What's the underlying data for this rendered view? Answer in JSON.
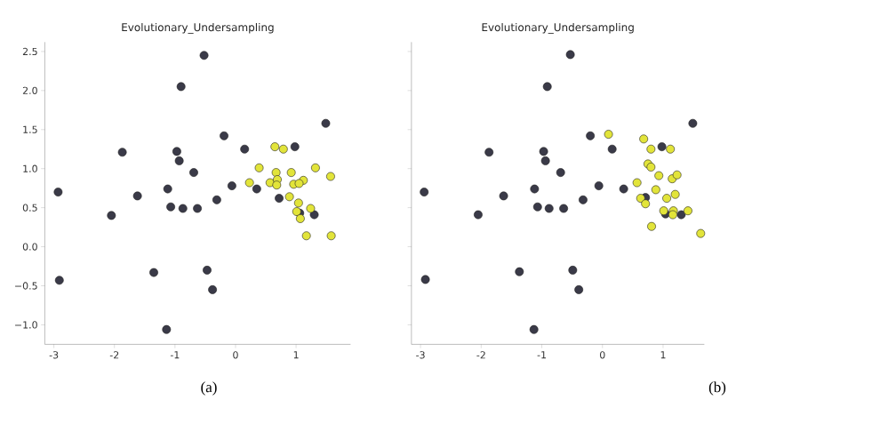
{
  "chart_data": [
    {
      "type": "scatter",
      "title": "Evolutionary_Undersampling",
      "annotations": [
        "(a)"
      ],
      "xlim": [
        -3.15,
        1.9
      ],
      "ylim": [
        -1.25,
        2.62
      ],
      "xticks": [
        -3,
        -2,
        -1,
        0,
        1
      ],
      "yticks": [
        {
          "value": -1,
          "label": "−1.0"
        },
        {
          "value": -0.5,
          "label": "−0.5"
        },
        {
          "value": 0,
          "label": "0.0"
        },
        {
          "value": 0.5,
          "label": "0.5"
        },
        {
          "value": 1,
          "label": "1.0"
        },
        {
          "value": 1.5,
          "label": "1.5"
        },
        {
          "value": 2,
          "label": "2.0"
        },
        {
          "value": 2.5,
          "label": "2.5"
        }
      ],
      "series": [
        {
          "color": "#3a3a48",
          "x": [
            -0.52,
            -0.9,
            1.49,
            -0.19,
            0.15,
            -1.87,
            -0.97,
            -0.93,
            0.98,
            -0.69,
            -2.93,
            -1.62,
            -1.12,
            -0.06,
            0.35,
            -1.07,
            -0.87,
            -0.63,
            -0.31,
            0.72,
            1.06,
            1.3,
            -2.05,
            -2.91,
            -1.35,
            -0.47,
            -0.38,
            -1.14
          ],
          "values": [
            2.45,
            2.05,
            1.58,
            1.42,
            1.25,
            1.21,
            1.22,
            1.1,
            1.28,
            0.95,
            0.7,
            0.65,
            0.74,
            0.78,
            0.74,
            0.51,
            0.49,
            0.49,
            0.6,
            0.62,
            0.43,
            0.41,
            0.4,
            -0.43,
            -0.33,
            -0.3,
            -0.55,
            -1.06
          ]
        },
        {
          "color": "#e2e43a",
          "x": [
            0.65,
            0.79,
            0.39,
            1.32,
            0.67,
            0.92,
            1.57,
            0.23,
            0.57,
            0.69,
            0.68,
            0.96,
            1.12,
            1.05,
            0.89,
            1.04,
            1.01,
            1.07,
            1.24,
            1.17,
            1.58
          ],
          "values": [
            1.28,
            1.25,
            1.01,
            1.01,
            0.95,
            0.95,
            0.9,
            0.82,
            0.82,
            0.86,
            0.79,
            0.8,
            0.85,
            0.81,
            0.64,
            0.56,
            0.45,
            0.36,
            0.49,
            0.14,
            0.14
          ]
        }
      ]
    },
    {
      "type": "scatter",
      "title": "Evolutionary_Undersampling",
      "annotations": [
        "(b)"
      ],
      "tick_labels": "x",
      "xlim": [
        -3.15,
        1.68
      ],
      "ylim": [
        -1.25,
        2.62
      ],
      "xticks": [
        -3,
        -2,
        -1,
        0,
        1
      ],
      "yticks": [
        {
          "value": -1,
          "label": null
        },
        {
          "value": -0.5,
          "label": null
        },
        {
          "value": 0,
          "label": null
        },
        {
          "value": 0.5,
          "label": null
        },
        {
          "value": 1,
          "label": null
        },
        {
          "value": 1.5,
          "label": null
        },
        {
          "value": 2,
          "label": null
        },
        {
          "value": 2.5,
          "label": null
        }
      ],
      "series": [
        {
          "color": "#3a3a48",
          "x": [
            -0.53,
            -0.91,
            1.49,
            -0.2,
            0.16,
            -1.87,
            -0.97,
            -0.94,
            0.98,
            -0.69,
            -2.94,
            -1.63,
            -1.12,
            -0.06,
            0.35,
            -1.07,
            -0.88,
            -0.64,
            -0.32,
            0.71,
            1.04,
            1.3,
            -2.05,
            -2.92,
            -1.37,
            -0.49,
            -0.39,
            -1.13
          ],
          "values": [
            2.46,
            2.05,
            1.58,
            1.42,
            1.25,
            1.21,
            1.22,
            1.1,
            1.28,
            0.95,
            0.7,
            0.65,
            0.74,
            0.78,
            0.74,
            0.51,
            0.49,
            0.49,
            0.6,
            0.63,
            0.42,
            0.41,
            0.41,
            -0.42,
            -0.32,
            -0.3,
            -0.55,
            -1.06
          ]
        },
        {
          "color": "#e2e43a",
          "x": [
            0.1,
            0.68,
            0.8,
            1.12,
            0.75,
            0.8,
            0.93,
            1.15,
            1.23,
            0.57,
            0.88,
            0.63,
            0.71,
            1.2,
            1.06,
            1.01,
            1.17,
            1.16,
            1.41,
            0.81,
            1.62
          ],
          "values": [
            1.44,
            1.38,
            1.25,
            1.25,
            1.06,
            1.02,
            0.91,
            0.87,
            0.92,
            0.82,
            0.73,
            0.62,
            0.55,
            0.67,
            0.62,
            0.46,
            0.46,
            0.41,
            0.46,
            0.26,
            0.17
          ]
        }
      ]
    }
  ]
}
